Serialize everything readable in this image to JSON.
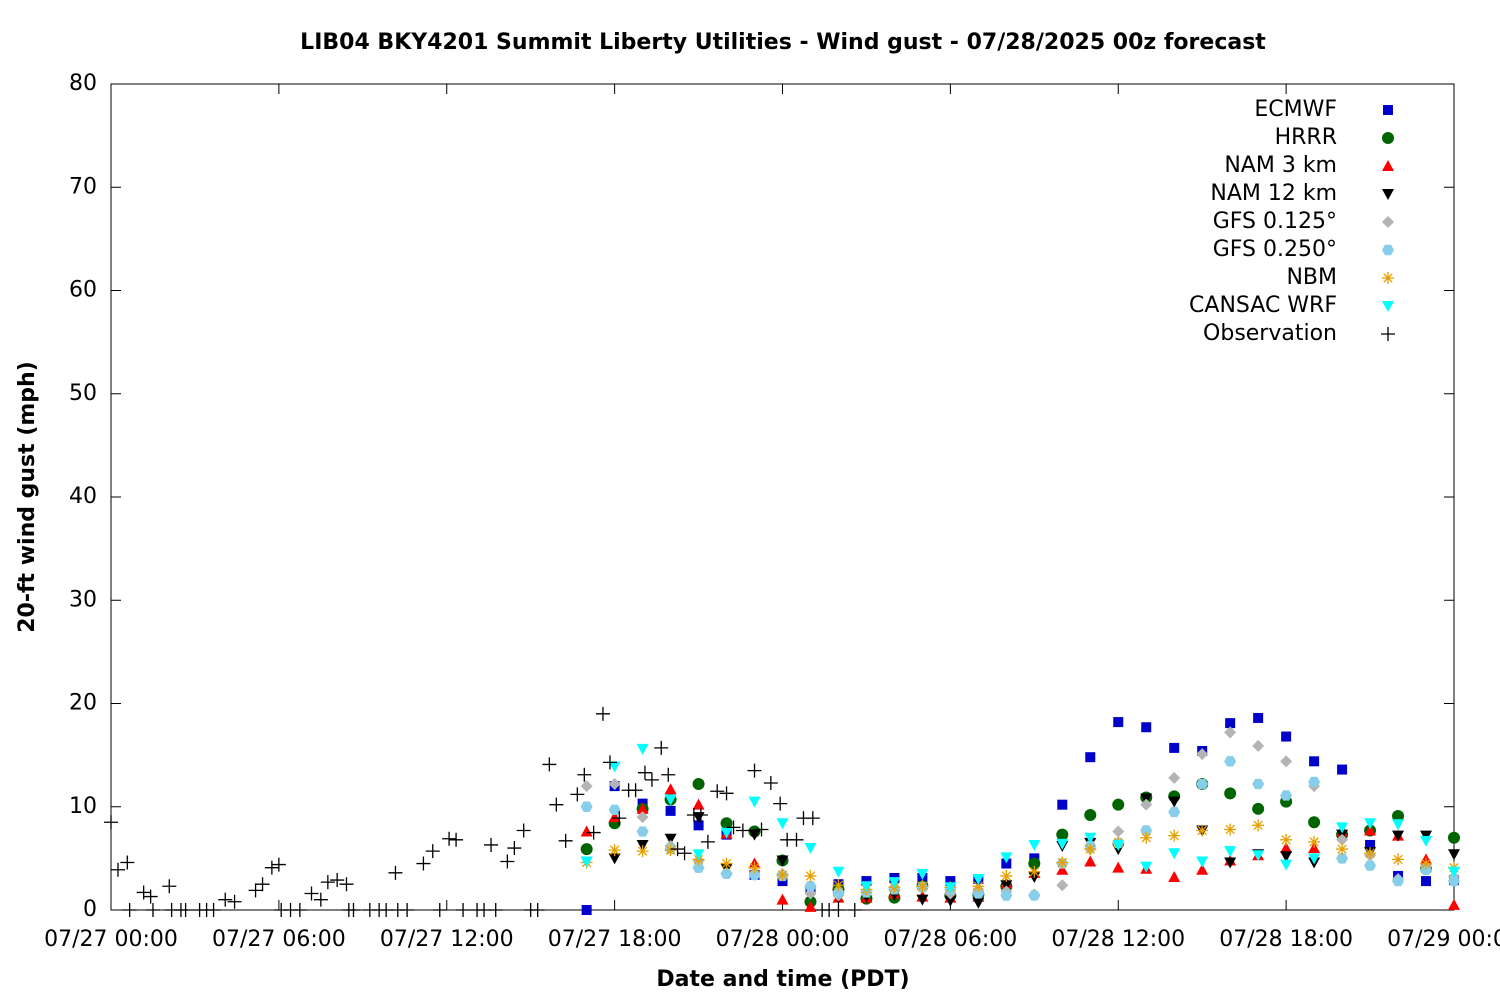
{
  "chart_data": {
    "type": "scatter",
    "title": "LIB04 BKY4201 Summit Liberty Utilities - Wind gust - 07/28/2025 00z forecast",
    "x_label": "Date and time (PDT)",
    "y_label": "20-ft wind gust (mph)",
    "xlim": [
      "07/27 00:00",
      "07/29 00:00"
    ],
    "xticks": [
      "07/27 00:00",
      "07/27 06:00",
      "07/27 12:00",
      "07/27 18:00",
      "07/28 00:00",
      "07/28 06:00",
      "07/28 12:00",
      "07/28 18:00",
      "07/29 00:00"
    ],
    "ylim": [
      0,
      80
    ],
    "yticks": [
      0,
      10,
      20,
      30,
      40,
      50,
      60,
      70,
      80
    ],
    "legend": "top-right",
    "x": [
      "07/27 17:00",
      "07/27 18:00",
      "07/27 19:00",
      "07/27 20:00",
      "07/27 21:00",
      "07/27 22:00",
      "07/27 23:00",
      "07/28 00:00",
      "07/28 01:00",
      "07/28 02:00",
      "07/28 03:00",
      "07/28 04:00",
      "07/28 05:00",
      "07/28 06:00",
      "07/28 07:00",
      "07/28 08:00",
      "07/28 09:00",
      "07/28 10:00",
      "07/28 11:00",
      "07/28 12:00",
      "07/28 13:00",
      "07/28 14:00",
      "07/28 15:00",
      "07/28 16:00",
      "07/28 17:00",
      "07/28 18:00",
      "07/28 19:00",
      "07/28 20:00",
      "07/28 21:00",
      "07/28 22:00",
      "07/28 23:00",
      "07/29 00:00"
    ],
    "series": [
      {
        "name": "ECMWF",
        "color": "#0000cc",
        "marker": "square",
        "values": [
          0,
          12.0,
          10.3,
          9.6,
          8.2,
          7.3,
          3.4,
          2.8,
          2.0,
          2.5,
          2.8,
          3.1,
          3.1,
          2.8,
          3.0,
          4.5,
          5.0,
          10.2,
          14.8,
          18.2,
          17.7,
          15.7,
          15.4,
          18.1,
          18.6,
          16.8,
          14.4,
          13.6,
          6.3,
          3.3,
          2.8,
          2.9
        ]
      },
      {
        "name": "HRRR",
        "color": "#006400",
        "marker": "circle",
        "values": [
          5.9,
          8.4,
          9.8,
          10.7,
          12.2,
          8.4,
          7.6,
          4.8,
          0.8,
          2.0,
          1.1,
          1.2,
          2.3,
          1.4,
          1.5,
          2.3,
          4.5,
          7.3,
          9.2,
          10.2,
          10.9,
          11.0,
          12.2,
          11.3,
          9.8,
          10.5,
          8.5,
          7.3,
          7.7,
          9.1,
          4.0,
          7.0
        ]
      },
      {
        "name": "NAM 3 km",
        "color": "#ff0000",
        "marker": "triangle-up",
        "values": [
          7.6,
          9.0,
          9.8,
          11.7,
          10.2,
          7.4,
          4.5,
          1.0,
          0.3,
          1.2,
          1.2,
          1.6,
          1.3,
          1.2,
          1.3,
          2.6,
          3.6,
          3.9,
          4.7,
          4.1,
          4.0,
          3.2,
          3.9,
          4.8,
          5.3,
          6.0,
          6.0,
          7.6,
          7.7,
          7.2,
          4.9,
          0.5
        ]
      },
      {
        "name": "NAM 12 km",
        "color": "#000000",
        "marker": "triangle-down",
        "values": [
          4.7,
          5.0,
          6.3,
          6.9,
          9.0,
          4.0,
          7.3,
          4.8,
          1.8,
          1.2,
          1.3,
          1.5,
          1.0,
          0.9,
          0.7,
          2.4,
          3.2,
          6.2,
          6.5,
          5.9,
          10.8,
          10.5,
          7.7,
          4.6,
          5.4,
          5.2,
          4.6,
          7.3,
          5.6,
          7.2,
          7.2,
          5.4
        ]
      },
      {
        "name": "GFS 0.125°",
        "color": "#b4b4b4",
        "marker": "diamond",
        "values": [
          12.0,
          12.2,
          9.0,
          6.2,
          4.8,
          3.6,
          3.4,
          3.5,
          1.6,
          1.4,
          1.8,
          2.2,
          2.3,
          1.6,
          2.0,
          1.8,
          1.5,
          2.4,
          5.9,
          7.6,
          10.2,
          12.8,
          15.1,
          17.2,
          15.9,
          14.4,
          12.0,
          6.8,
          5.3,
          3.0,
          4.2,
          3.2
        ]
      },
      {
        "name": "GFS 0.250°",
        "color": "#87ceeb",
        "marker": "hexagon",
        "values": [
          10.0,
          9.7,
          7.6,
          5.9,
          4.1,
          3.5,
          3.4,
          3.3,
          2.3,
          1.7,
          1.7,
          2.0,
          2.2,
          2.0,
          1.6,
          1.4,
          1.4,
          4.5,
          6.2,
          6.5,
          7.7,
          9.5,
          12.2,
          14.4,
          12.2,
          11.1,
          12.4,
          5.0,
          4.3,
          2.8,
          3.9,
          2.8
        ]
      },
      {
        "name": "NBM",
        "color": "#e69f00",
        "marker": "star",
        "values": [
          4.6,
          5.8,
          5.7,
          5.8,
          4.9,
          4.5,
          4.1,
          3.4,
          3.3,
          2.4,
          2.0,
          2.2,
          2.3,
          2.2,
          2.3,
          3.3,
          3.7,
          4.6,
          5.9,
          6.5,
          7.0,
          7.2,
          7.7,
          7.8,
          8.2,
          6.8,
          6.6,
          5.9,
          5.5,
          4.9,
          4.5,
          4.1
        ]
      },
      {
        "name": "CANSAC WRF",
        "color": "#00ffff",
        "marker": "triangle-down",
        "values": [
          4.7,
          13.9,
          15.6,
          10.7,
          5.4,
          7.5,
          10.5,
          8.4,
          6.0,
          3.7,
          2.3,
          2.7,
          3.5,
          2.2,
          3.0,
          5.1,
          6.3,
          6.4,
          7.0,
          6.3,
          4.2,
          5.5,
          4.7,
          5.7,
          5.3,
          4.4,
          5.0,
          8.0,
          8.4,
          8.3,
          6.7,
          3.7
        ]
      },
      {
        "name": "Observation",
        "color": "#000000",
        "marker": "plus",
        "x": [
          "07/27 00:00",
          "07/27 00:15",
          "07/27 00:35",
          "07/27 00:40",
          "07/27 01:10",
          "07/27 01:25",
          "07/27 01:30",
          "07/27 02:05",
          "07/27 02:10",
          "07/27 02:30",
          "07/27 02:40",
          "07/27 03:10",
          "07/27 03:25",
          "07/27 03:40",
          "07/27 04:05",
          "07/27 04:25",
          "07/27 05:10",
          "07/27 05:25",
          "07/27 05:45",
          "07/27 06:00",
          "07/27 06:05",
          "07/27 06:25",
          "07/27 06:45",
          "07/27 07:10",
          "07/27 07:30",
          "07/27 07:45",
          "07/27 08:05",
          "07/27 08:25",
          "07/27 08:30",
          "07/27 08:40",
          "07/27 09:15",
          "07/27 09:35",
          "07/27 09:50",
          "07/27 10:10",
          "07/27 10:15",
          "07/27 10:35",
          "07/27 11:10",
          "07/27 11:30",
          "07/27 11:45",
          "07/27 12:05",
          "07/27 12:20",
          "07/27 12:35",
          "07/27 13:05",
          "07/27 13:20",
          "07/27 13:35",
          "07/27 13:45",
          "07/27 14:10",
          "07/27 14:25",
          "07/27 14:45",
          "07/27 15:00",
          "07/27 15:15",
          "07/27 15:40",
          "07/27 15:55",
          "07/27 16:15",
          "07/27 16:40",
          "07/27 16:55",
          "07/27 17:15",
          "07/27 17:35",
          "07/27 17:50",
          "07/27 18:10",
          "07/27 18:30",
          "07/27 18:45",
          "07/27 19:05",
          "07/27 19:20",
          "07/27 19:40",
          "07/27 19:55",
          "07/27 20:15",
          "07/27 20:30",
          "07/27 20:50",
          "07/27 21:05",
          "07/27 21:20",
          "07/27 21:40",
          "07/27 22:00",
          "07/27 22:15",
          "07/27 22:35",
          "07/27 23:00",
          "07/27 23:15",
          "07/27 23:35",
          "07/27 23:55",
          "07/28 00:10",
          "07/28 00:30",
          "07/28 00:45",
          "07/28 01:05",
          "07/28 01:25",
          "07/28 01:40",
          "07/28 02:00",
          "07/28 02:35"
        ],
        "values": [
          8.5,
          3.9,
          4.6,
          0,
          1.7,
          1.3,
          0,
          2.3,
          0,
          0,
          0,
          0,
          0,
          0,
          1.0,
          0.8,
          1.9,
          2.5,
          4.1,
          4.4,
          0,
          0,
          0,
          1.6,
          1.0,
          2.7,
          2.9,
          2.5,
          0,
          0,
          0,
          0,
          0,
          3.6,
          0,
          0,
          4.5,
          5.7,
          0,
          6.9,
          6.8,
          0,
          0,
          0,
          6.3,
          0,
          4.7,
          6.0,
          7.7,
          0,
          0,
          14.1,
          10.2,
          6.7,
          11.2,
          13.1,
          7.5,
          19.0,
          14.3,
          8.9,
          11.6,
          11.6,
          13.3,
          12.6,
          15.7,
          13.1,
          5.9,
          5.5,
          9.2,
          9.2,
          6.6,
          11.5,
          11.3,
          8.0,
          7.7,
          13.5,
          7.8,
          12.3,
          10.3,
          6.8,
          6.8,
          8.9,
          8.9,
          0,
          0,
          0,
          0
        ]
      }
    ]
  }
}
